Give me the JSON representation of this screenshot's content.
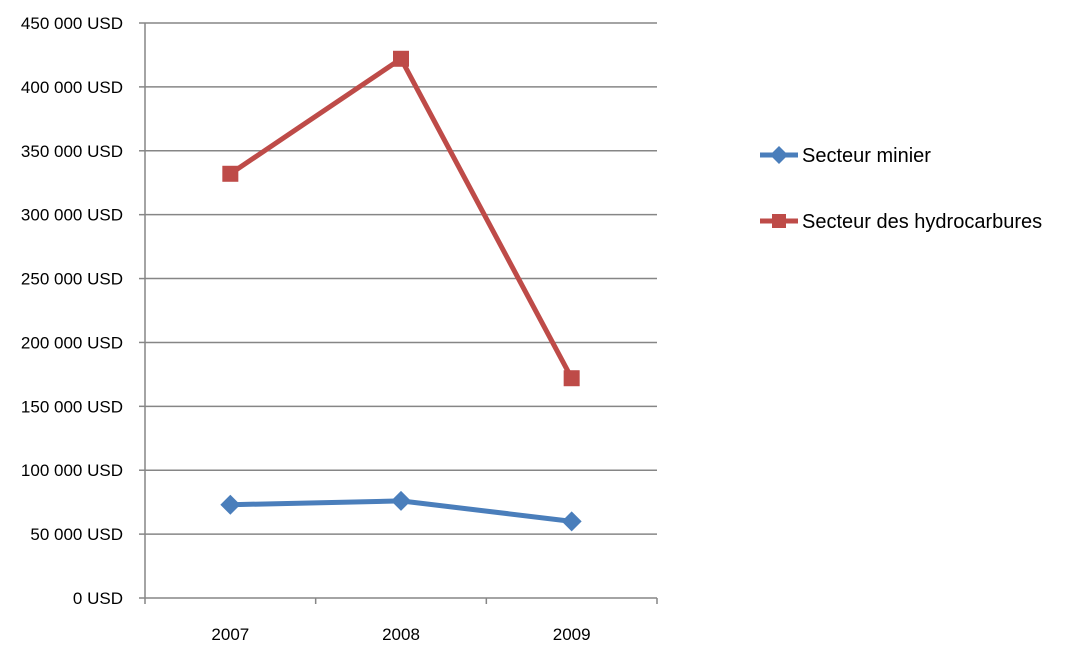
{
  "chart_data": {
    "type": "line",
    "title": "",
    "xlabel": "",
    "ylabel": "",
    "categories": [
      "2007",
      "2008",
      "2009"
    ],
    "ylim": [
      0,
      450000
    ],
    "y_ticks": [
      0,
      50000,
      100000,
      150000,
      200000,
      250000,
      300000,
      350000,
      400000,
      450000
    ],
    "y_tick_labels": [
      "0 USD",
      "50 000 USD",
      "100 000 USD",
      "150 000 USD",
      "200 000 USD",
      "250 000 USD",
      "300 000 USD",
      "350 000 USD",
      "400 000 USD",
      "450 000 USD"
    ],
    "grid": true,
    "legend_position": "right",
    "series": [
      {
        "name": "Secteur minier",
        "values": [
          73000,
          76000,
          60000
        ],
        "color": "#4A7EBB",
        "marker": "diamond"
      },
      {
        "name": "Secteur des hydrocarbures",
        "values": [
          332000,
          422000,
          172000
        ],
        "color": "#BE4B48",
        "marker": "square"
      }
    ]
  }
}
